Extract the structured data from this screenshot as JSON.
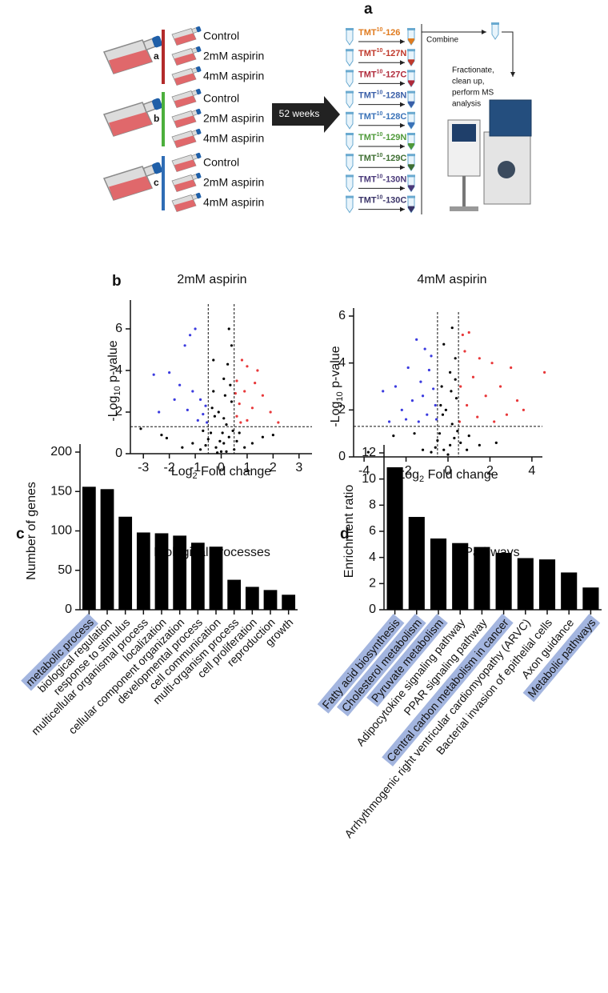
{
  "panel_a": {
    "label": "a",
    "groups": [
      {
        "label": "a",
        "color": "#b22a2a",
        "conditions": [
          "Control",
          "2mM aspirin",
          "4mM aspirin"
        ]
      },
      {
        "label": "b",
        "color": "#4caf3c",
        "conditions": [
          "Control",
          "2mM aspirin",
          "4mM aspirin"
        ]
      },
      {
        "label": "c",
        "color": "#2f6db5",
        "conditions": [
          "Control",
          "2mM aspirin",
          "4mM aspirin"
        ]
      }
    ],
    "arrow": "52 weeks",
    "tmt": [
      {
        "base": "TMT",
        "sup": "10",
        "suffix": "-126",
        "color": "#e07b1f"
      },
      {
        "base": "TMT",
        "sup": "10",
        "suffix": "-127N",
        "color": "#c0392b"
      },
      {
        "base": "TMT",
        "sup": "10",
        "suffix": "-127C",
        "color": "#b02a3a"
      },
      {
        "base": "TMT",
        "sup": "10",
        "suffix": "-128N",
        "color": "#3a5fa8"
      },
      {
        "base": "TMT",
        "sup": "10",
        "suffix": "-128C",
        "color": "#3a72b8"
      },
      {
        "base": "TMT",
        "sup": "10",
        "suffix": "-129N",
        "color": "#4f9a3a"
      },
      {
        "base": "TMT",
        "sup": "10",
        "suffix": "-129C",
        "color": "#3f6f33"
      },
      {
        "base": "TMT",
        "sup": "10",
        "suffix": "-130N",
        "color": "#4a3a7a"
      },
      {
        "base": "TMT",
        "sup": "10",
        "suffix": "-130C",
        "color": "#3a3468"
      }
    ],
    "combine": "Combine",
    "process": [
      "Fractionate,",
      "clean up,",
      "perform MS",
      "analysis"
    ]
  },
  "panel_b_label": "b",
  "chart_data": [
    {
      "type": "scatter",
      "title": "2mM aspirin",
      "ylabel": {
        "pre": "-Log",
        "sub": "10",
        "post": " p-value"
      },
      "xlabel": {
        "pre": "Log",
        "sub": "2",
        "post": " Fold change"
      },
      "xlim": [
        -3.5,
        3.5
      ],
      "xticks": [
        -3,
        -2,
        -1,
        0,
        1,
        2,
        3
      ],
      "ylim": [
        0,
        7
      ],
      "yticks": [
        0,
        2,
        4,
        6
      ],
      "threshold_lines": {
        "x": [
          -0.5,
          0.5
        ],
        "y": 1.3
      },
      "series": [
        {
          "name": "not significant",
          "color": "#000000",
          "x": [
            -0.2,
            0.1,
            0.3,
            -0.4,
            0.2,
            -0.1,
            0.4,
            -0.3,
            0.1,
            0.0,
            -0.6,
            0.6,
            -0.8,
            0.9,
            -0.5,
            0.45,
            -0.25,
            0.15,
            -0.35,
            0.35,
            0.25,
            -0.3,
            0.4,
            0.3,
            -2.3,
            -2.1,
            -3.1,
            1.2,
            -1.1,
            0.05,
            -0.05,
            0.2,
            -0.15,
            0.7,
            -0.7,
            0.5,
            1.6,
            -1.5,
            2.0,
            0.1
          ],
          "y": [
            0.3,
            0.5,
            0.8,
            1.0,
            1.4,
            2.0,
            2.5,
            3.0,
            3.6,
            0.1,
            0.4,
            0.6,
            0.2,
            0.3,
            0.7,
            1.1,
            1.8,
            2.8,
            2.2,
            3.3,
            4.3,
            4.5,
            5.2,
            6.0,
            0.9,
            0.75,
            1.2,
            0.5,
            0.5,
            1.0,
            0.6,
            0.1,
            0.05,
            1.0,
            1.1,
            0.2,
            0.8,
            0.3,
            0.9,
            1.7
          ]
        },
        {
          "name": "down",
          "color": "#3b3bdf",
          "x": [
            -1.0,
            -1.2,
            -1.4,
            -2.6,
            -2.0,
            -1.6,
            -1.1,
            -0.8,
            -0.6,
            -0.7,
            -1.8,
            -2.4,
            -0.9,
            -0.55,
            -1.3
          ],
          "y": [
            6.0,
            5.7,
            5.2,
            3.8,
            3.9,
            3.3,
            3.0,
            2.6,
            2.3,
            1.9,
            2.6,
            2.0,
            1.6,
            1.5,
            2.1
          ]
        },
        {
          "name": "up",
          "color": "#e8383a",
          "x": [
            0.6,
            0.8,
            1.0,
            1.3,
            1.6,
            0.7,
            0.9,
            1.2,
            1.9,
            0.6,
            2.2,
            1.0,
            0.55,
            1.4,
            0.75
          ],
          "y": [
            3.5,
            4.5,
            4.2,
            3.4,
            2.8,
            2.4,
            3.0,
            2.2,
            2.0,
            1.8,
            1.5,
            1.6,
            2.9,
            4.0,
            1.5
          ]
        }
      ]
    },
    {
      "type": "scatter",
      "title": "4mM aspirin",
      "ylabel": {
        "pre": "-Log",
        "sub": "10",
        "post": " p-value"
      },
      "xlabel": {
        "pre": "Log",
        "sub": "2",
        "post": " Fold change"
      },
      "xlim": [
        -4.5,
        4.5
      ],
      "xticks": [
        -4,
        -2,
        0,
        2,
        4
      ],
      "ylim": [
        0,
        6
      ],
      "yticks": [
        0,
        2,
        4,
        6
      ],
      "threshold_lines": {
        "x": [
          -0.5,
          0.5
        ],
        "y": 1.3
      },
      "series": [
        {
          "name": "not significant",
          "color": "#000000",
          "x": [
            -0.2,
            0.1,
            0.3,
            -0.4,
            0.2,
            -0.1,
            0.4,
            -0.3,
            0.1,
            0.0,
            -0.6,
            0.6,
            -0.8,
            0.9,
            -0.5,
            0.45,
            -0.25,
            0.15,
            -0.35,
            0.35,
            0.35,
            -0.2,
            0.2,
            -3.8,
            -2.6,
            1.5,
            2.3,
            -1.2,
            1.0,
            -1.6
          ],
          "y": [
            0.3,
            0.5,
            0.8,
            1.0,
            1.4,
            2.0,
            2.5,
            3.0,
            3.6,
            0.1,
            0.4,
            0.6,
            0.2,
            0.3,
            0.7,
            1.1,
            1.8,
            2.8,
            2.2,
            3.3,
            4.2,
            4.8,
            5.5,
            0.2,
            0.9,
            0.5,
            0.6,
            0.3,
            0.9,
            1.0
          ]
        },
        {
          "name": "down",
          "color": "#3b3bdf",
          "x": [
            -1.5,
            -1.1,
            -0.8,
            -1.9,
            -2.5,
            -3.1,
            -1.3,
            -0.7,
            -1.7,
            -2.2,
            -0.6,
            -1.0,
            -2.8,
            -1.4,
            -0.9,
            -0.55,
            -2.0,
            -1.2
          ],
          "y": [
            5.0,
            4.6,
            4.3,
            3.8,
            3.0,
            2.8,
            3.2,
            2.9,
            2.4,
            2.0,
            2.2,
            1.8,
            1.5,
            1.5,
            3.7,
            1.6,
            1.6,
            2.6
          ]
        },
        {
          "name": "up",
          "color": "#e8383a",
          "x": [
            0.7,
            1.0,
            0.8,
            1.5,
            2.1,
            3.0,
            4.6,
            1.2,
            2.5,
            0.6,
            1.8,
            3.3,
            0.9,
            2.8,
            1.4,
            0.55,
            3.6,
            2.2
          ],
          "y": [
            5.2,
            5.3,
            4.5,
            4.2,
            4.0,
            3.8,
            3.6,
            3.4,
            3.0,
            3.0,
            2.6,
            2.4,
            2.2,
            1.8,
            1.7,
            1.5,
            2.0,
            1.5
          ]
        }
      ]
    },
    {
      "type": "bar",
      "panel_label": "c",
      "title": "Biological processes",
      "ylabel": "Number of genes",
      "categories": [
        "metabolic process",
        "biological regulation",
        "response to stimulus",
        "multicellular organismal process",
        "localization",
        "cellular component organization",
        "developmental process",
        "cell communication",
        "multi-organism process",
        "cell proliferation",
        "reproduction",
        "growth"
      ],
      "values": [
        156,
        153,
        118,
        98,
        97,
        94,
        85,
        80,
        38,
        29,
        25,
        19
      ],
      "color": "#000000",
      "highlight_indices": [
        0
      ],
      "highlight_color": "#a3b5df",
      "ylim": [
        0,
        200
      ],
      "yticks": [
        0,
        50,
        100,
        150,
        200
      ]
    },
    {
      "type": "bar",
      "panel_label": "d",
      "title": "Pathways",
      "ylabel": "Enrichment ratio",
      "categories": [
        "Fatty acid biosynthesis",
        "Cholesterol metabolism",
        "Pyruvate metabolism",
        "Adipocytokine signaling pathway",
        "PPAR signaling pathway",
        "Central carbon metabolism in cancer",
        "Arrhythmogenic right ventricular cardiomyopathy (ARVC)",
        "Bacterial invasion of epithelial cells",
        "Axon guidance",
        "Metabolic pathways"
      ],
      "values": [
        10.9,
        7.1,
        5.45,
        5.1,
        4.8,
        4.35,
        3.95,
        3.85,
        2.85,
        1.7
      ],
      "color": "#000000",
      "highlight_indices": [
        0,
        1,
        2,
        5,
        9
      ],
      "highlight_color": "#a3b5df",
      "ylim": [
        0,
        12
      ],
      "yticks": [
        0,
        2,
        4,
        6,
        8,
        10,
        12
      ]
    }
  ]
}
